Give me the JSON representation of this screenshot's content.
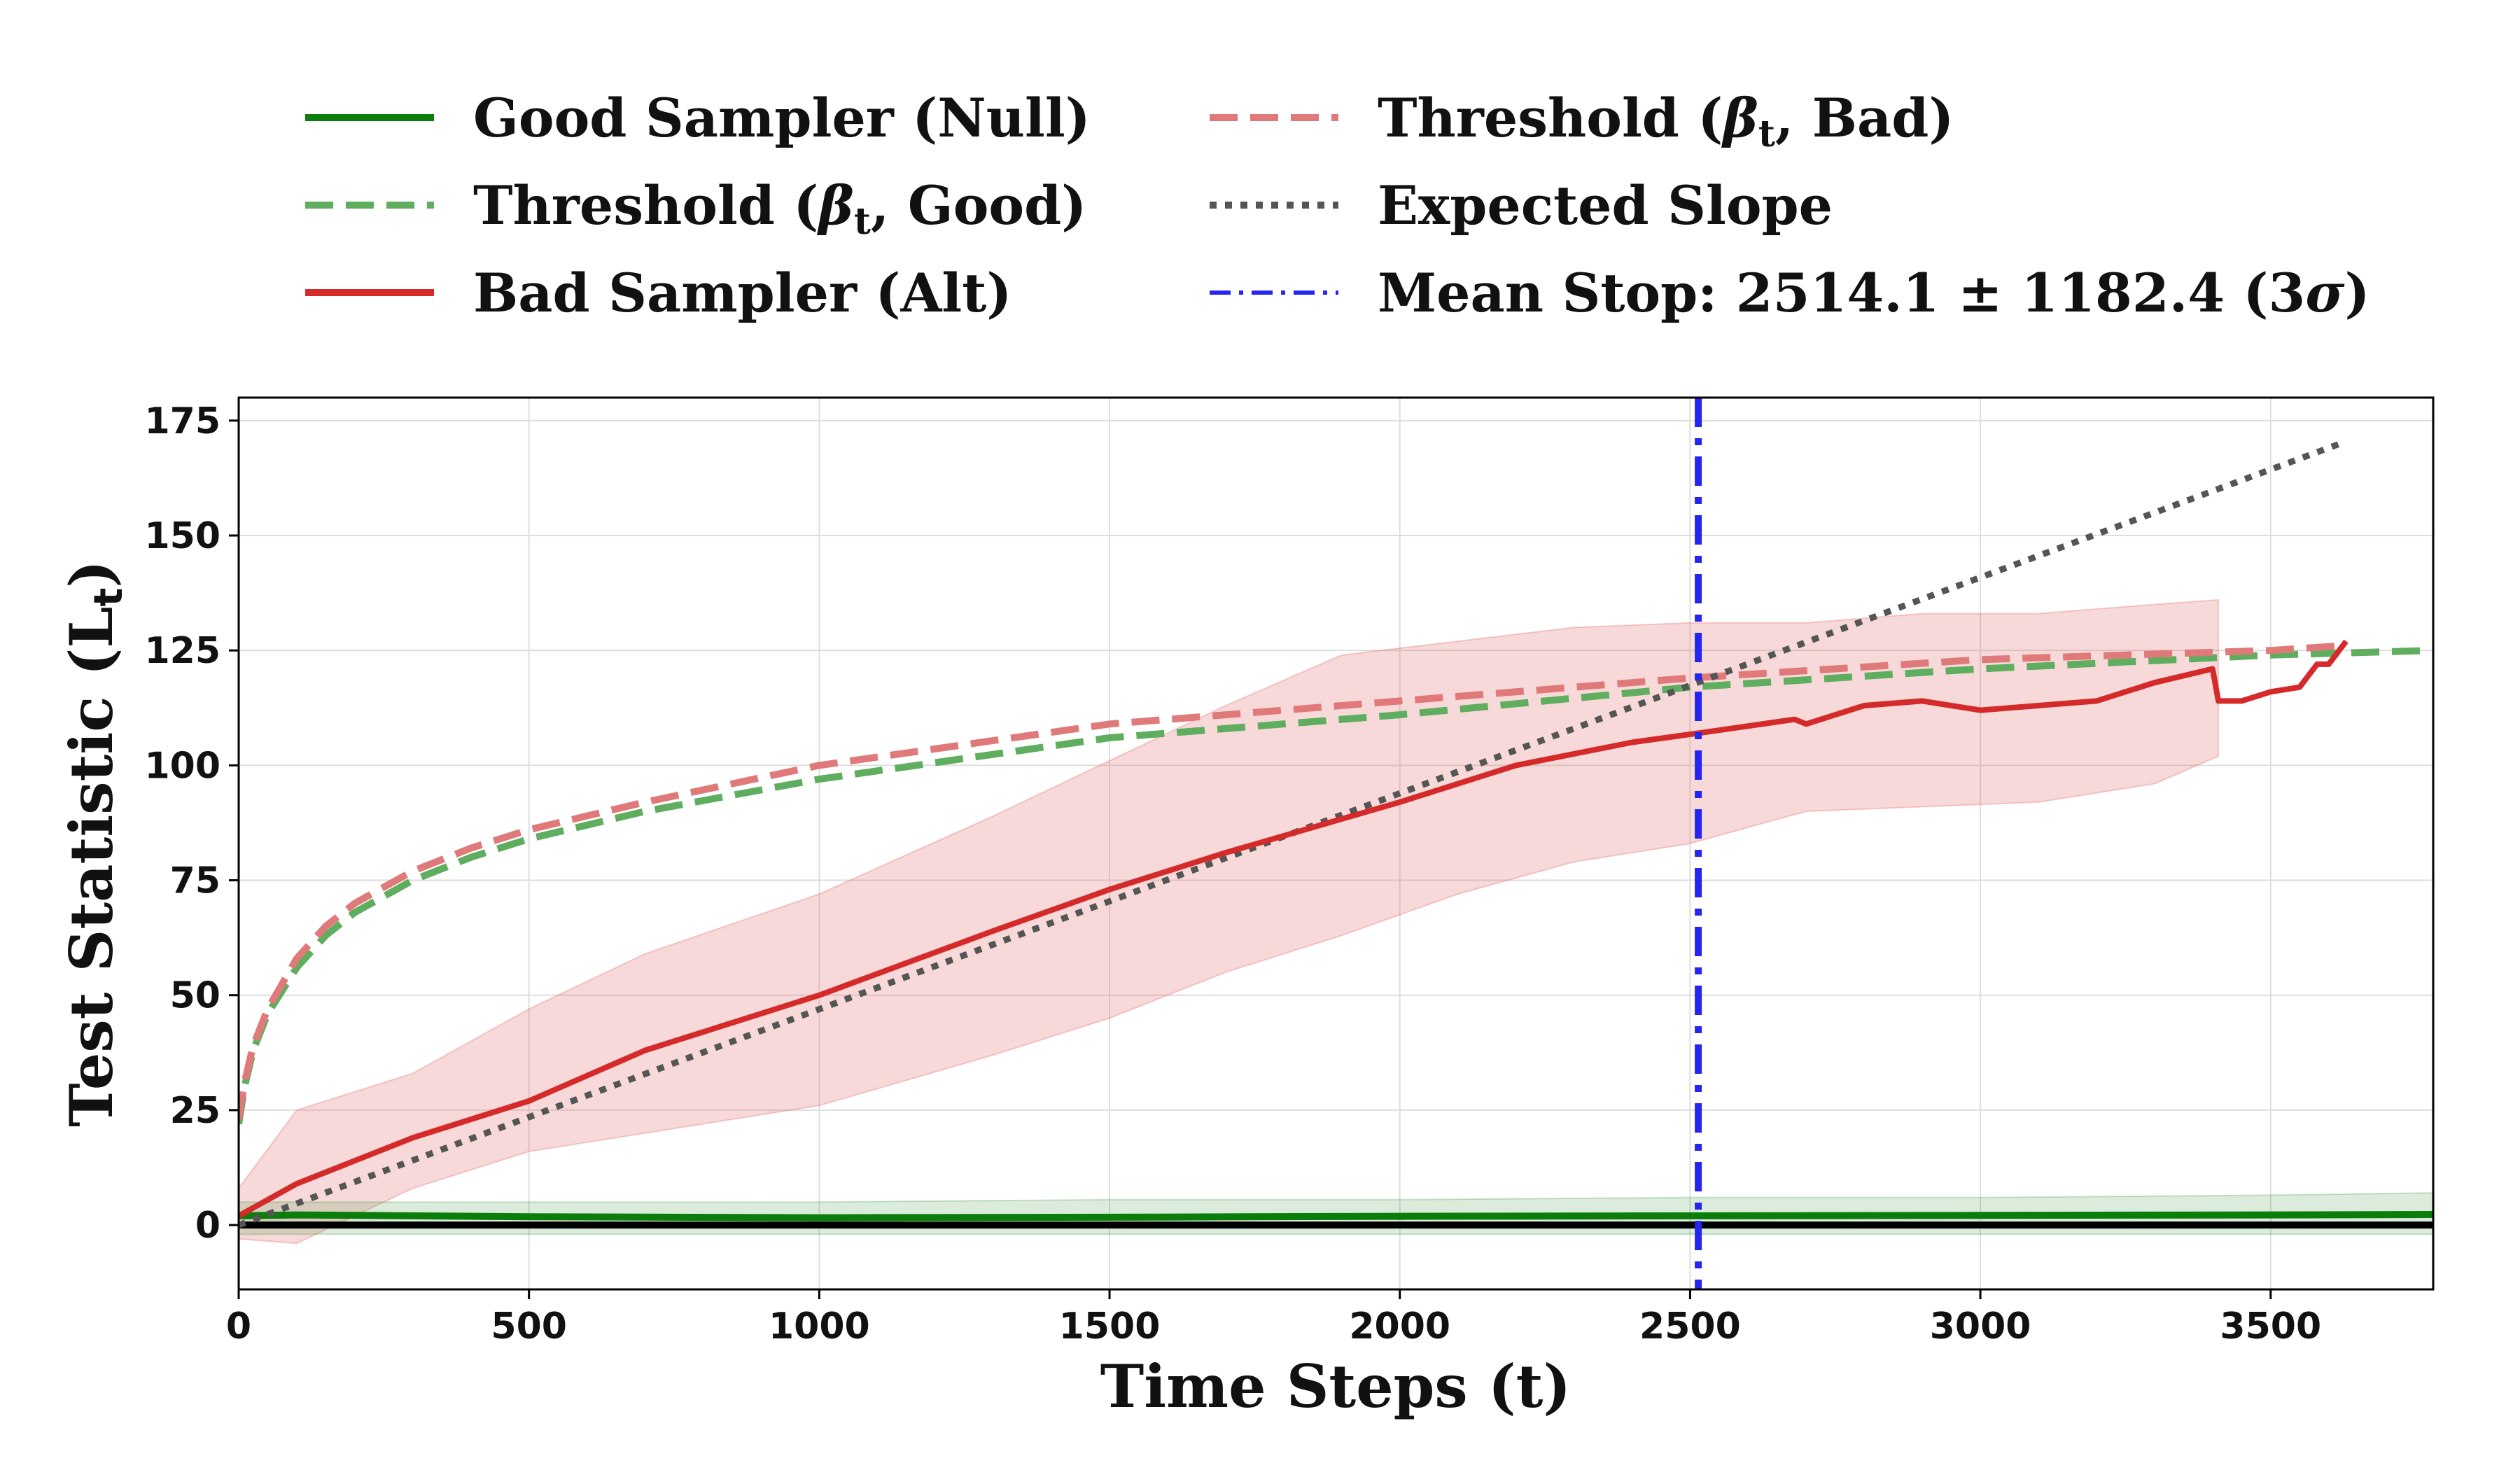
{
  "chart_data": {
    "type": "line",
    "xlabel": "Time Steps (t)",
    "ylabel_main": "Test Statistic (L",
    "ylabel_sub": "t",
    "ylabel_end": ")",
    "xlim": [
      0,
      3780
    ],
    "ylim": [
      -14,
      180
    ],
    "xticks": [
      0,
      500,
      1000,
      1500,
      2000,
      2500,
      3000,
      3500
    ],
    "yticks": [
      0,
      25,
      50,
      75,
      100,
      125,
      150,
      175
    ],
    "grid": true,
    "legend_position": "top",
    "legend": [
      {
        "key": "good",
        "pre": "Good Sampler (Null)",
        "sub": "",
        "post": "",
        "color": "#0b7d0b",
        "style": "solid"
      },
      {
        "key": "thr_good",
        "pre": "Threshold (",
        "sub": "t",
        "post": ", Good)",
        "color": "#5fae5f",
        "style": "dashed"
      },
      {
        "key": "bad",
        "pre": "Bad Sampler (Alt)",
        "sub": "",
        "post": "",
        "color": "#d42a2a",
        "style": "solid"
      },
      {
        "key": "thr_bad",
        "pre": "Threshold (",
        "sub": "t",
        "post": ", Bad)",
        "color": "#e07a7a",
        "style": "dashed"
      },
      {
        "key": "slope",
        "pre": "Expected Slope",
        "sub": "",
        "post": "",
        "color": "#555555",
        "style": "dotted"
      },
      {
        "key": "stop",
        "pre": "Mean Stop: 2514.1 ± 1182.4 (3",
        "sub": "",
        "post": ")",
        "color": "#2525ee",
        "style": "dashdot"
      }
    ],
    "series": [
      {
        "name": "Good Sampler (Null)",
        "x": [
          0,
          100,
          500,
          1000,
          1500,
          2000,
          2500,
          3000,
          3500,
          3780
        ],
        "y": [
          2,
          2.2,
          1.8,
          1.6,
          1.7,
          1.9,
          2.0,
          2.1,
          2.2,
          2.3
        ]
      },
      {
        "name": "Threshold (βt, Good)",
        "x": [
          0,
          10,
          25,
          50,
          100,
          150,
          200,
          300,
          400,
          500,
          700,
          1000,
          1500,
          2000,
          2500,
          3000,
          3500,
          3780
        ],
        "y": [
          22,
          30,
          38,
          46,
          56,
          63,
          68,
          75,
          80,
          84,
          90,
          97,
          106,
          111,
          117,
          121,
          124,
          125
        ]
      },
      {
        "name": "Bad Sampler (Alt)",
        "x": [
          0,
          100,
          300,
          500,
          700,
          1000,
          1300,
          1500,
          1700,
          2000,
          2200,
          2400,
          2514,
          2680,
          2700,
          2800,
          2900,
          3000,
          3100,
          3200,
          3300,
          3400,
          3410,
          3450,
          3500,
          3550,
          3580,
          3600,
          3630
        ],
        "y": [
          2,
          9,
          19,
          27,
          38,
          50,
          64,
          73,
          81,
          92,
          100,
          105,
          107,
          110,
          109,
          113,
          114,
          112,
          113,
          114,
          118,
          121,
          114,
          114,
          116,
          117,
          122,
          122,
          127
        ]
      },
      {
        "name": "Threshold (βt, Bad)",
        "x": [
          0,
          10,
          25,
          50,
          100,
          150,
          200,
          300,
          400,
          500,
          700,
          1000,
          1500,
          2000,
          2500,
          3000,
          3500,
          3620
        ],
        "y": [
          23,
          31,
          39,
          47,
          58,
          65,
          70,
          77,
          82,
          86,
          92,
          100,
          109,
          114,
          119,
          123,
          125,
          126
        ]
      },
      {
        "name": "Expected Slope",
        "x": [
          0,
          3620
        ],
        "y": [
          0,
          170
        ]
      }
    ],
    "bands": [
      {
        "name": "Bad Sampler (Alt)",
        "x": [
          0,
          100,
          300,
          500,
          700,
          1000,
          1300,
          1500,
          1700,
          1900,
          2100,
          2300,
          2500,
          2700,
          2900,
          3100,
          3300,
          3410
        ],
        "upper": [
          8,
          25,
          33,
          47,
          59,
          72,
          89,
          101,
          113,
          124,
          127,
          130,
          131,
          131,
          133,
          133,
          135,
          136
        ],
        "lower": [
          -3,
          -4,
          8,
          16,
          20,
          26,
          37,
          45,
          55,
          63,
          72,
          79,
          83,
          90,
          91,
          92,
          96,
          102
        ]
      },
      {
        "name": "Good Sampler (Null)",
        "x": [
          0,
          500,
          1000,
          1500,
          2000,
          2500,
          3000,
          3500,
          3780
        ],
        "upper": [
          5,
          5,
          5,
          5.5,
          5.5,
          6,
          6,
          6.5,
          7
        ],
        "lower": [
          -2,
          -2,
          -2,
          -2,
          -2,
          -2,
          -2,
          -2,
          -2
        ]
      }
    ],
    "reference_line_y": 0,
    "mean_stop_x": 2514.1
  }
}
